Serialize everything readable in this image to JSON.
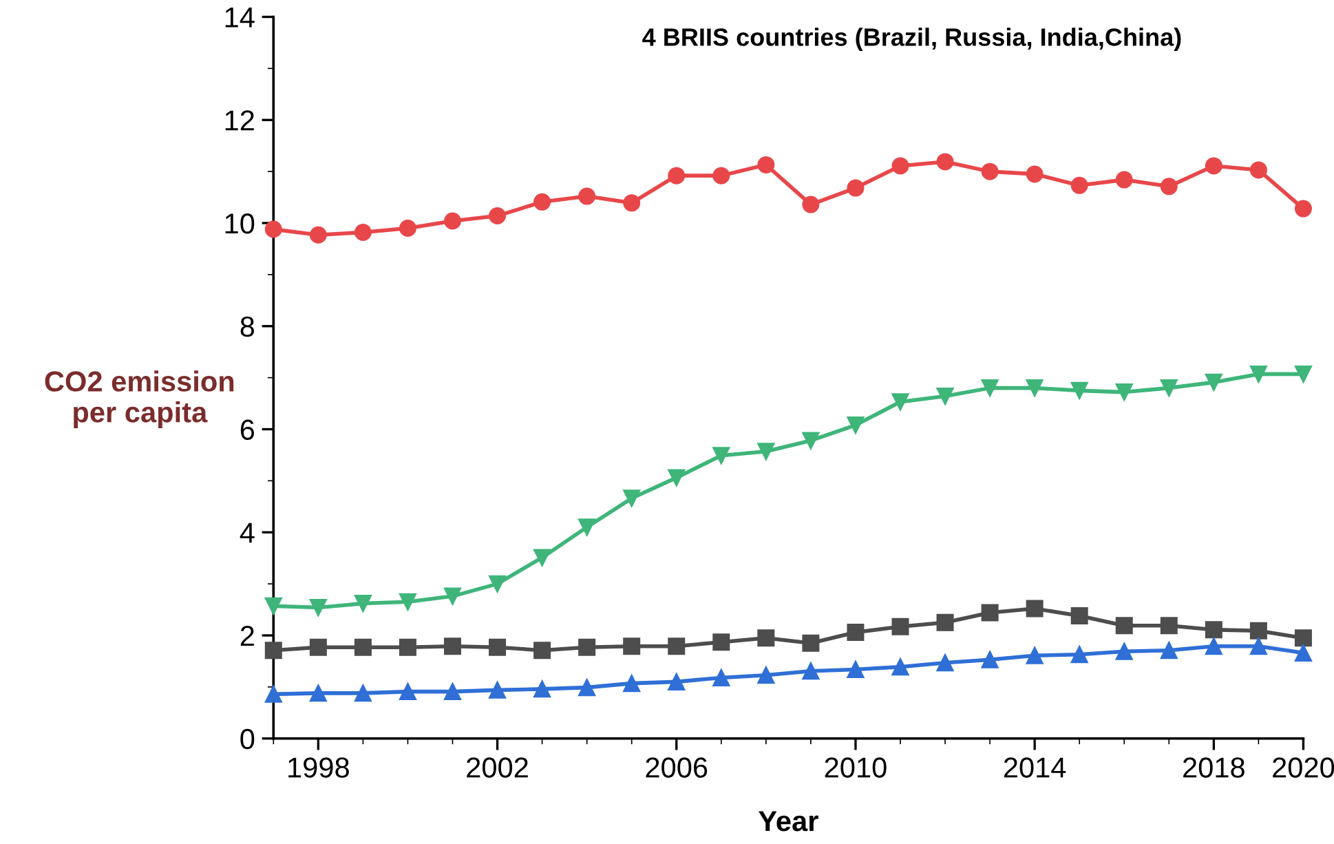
{
  "chart_data": {
    "type": "line",
    "title": "4 BRIIS countries (Brazil, Russia, India,China)",
    "xlabel": "Year",
    "ylabel": "CO2 emission\nper capita",
    "x": [
      1997,
      1998,
      1999,
      2000,
      2001,
      2002,
      2003,
      2004,
      2005,
      2006,
      2007,
      2008,
      2009,
      2010,
      2011,
      2012,
      2013,
      2014,
      2015,
      2016,
      2017,
      2018,
      2019,
      2020
    ],
    "series": [
      {
        "color": "#e8474a",
        "marker": "circle",
        "values": [
          9.88,
          9.77,
          9.82,
          9.9,
          10.04,
          10.14,
          10.41,
          10.52,
          10.39,
          10.92,
          10.92,
          11.13,
          10.36,
          10.68,
          11.11,
          11.19,
          11.0,
          10.95,
          10.73,
          10.84,
          10.71,
          11.11,
          11.03,
          10.28
        ]
      },
      {
        "color": "#3fb57a",
        "marker": "triangle-down",
        "values": [
          2.57,
          2.54,
          2.62,
          2.65,
          2.76,
          3.0,
          3.51,
          4.1,
          4.66,
          5.06,
          5.49,
          5.57,
          5.78,
          6.08,
          6.53,
          6.64,
          6.8,
          6.8,
          6.75,
          6.72,
          6.8,
          6.91,
          7.07,
          7.07
        ]
      },
      {
        "color": "#4d4d4d",
        "marker": "square",
        "values": [
          1.71,
          1.77,
          1.77,
          1.77,
          1.79,
          1.77,
          1.71,
          1.77,
          1.79,
          1.79,
          1.87,
          1.95,
          1.85,
          2.06,
          2.17,
          2.25,
          2.44,
          2.52,
          2.38,
          2.19,
          2.19,
          2.11,
          2.09,
          1.95
        ]
      },
      {
        "color": "#2f6fd6",
        "marker": "triangle",
        "values": [
          0.86,
          0.88,
          0.88,
          0.91,
          0.91,
          0.94,
          0.96,
          0.99,
          1.07,
          1.1,
          1.18,
          1.23,
          1.31,
          1.34,
          1.39,
          1.47,
          1.53,
          1.61,
          1.63,
          1.69,
          1.71,
          1.79,
          1.79,
          1.66
        ]
      }
    ],
    "xlim": [
      1997,
      2020
    ],
    "xticks": [
      1998,
      2002,
      2006,
      2010,
      2014,
      2018,
      2020
    ],
    "ylim": [
      0,
      14
    ],
    "yticks": [
      0,
      2,
      4,
      6,
      8,
      10,
      12,
      14
    ],
    "grid": false,
    "legend": false
  }
}
